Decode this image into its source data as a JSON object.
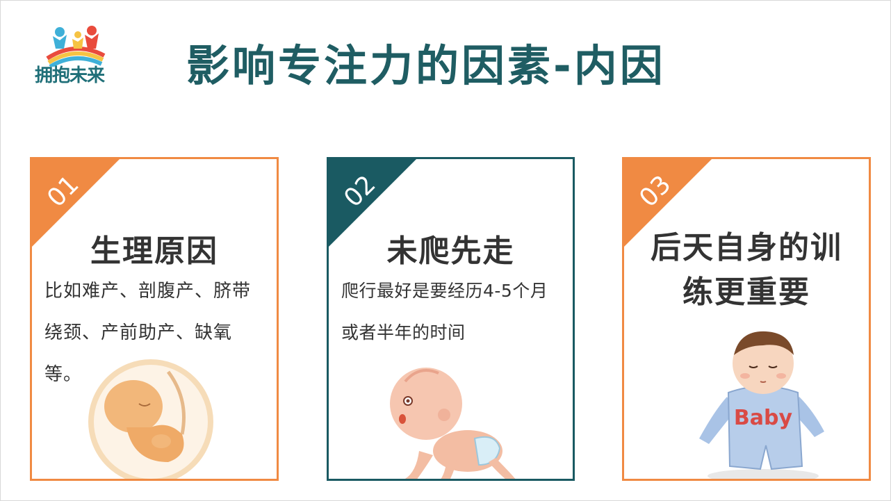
{
  "logo": {
    "text": "拥抱未来"
  },
  "title": "影响专注力的因素-内因",
  "cards": [
    {
      "number": "01",
      "heading": "生理原因",
      "body": "比如难产、剖腹产、脐带绕颈、产前助产、缺氧等。"
    },
    {
      "number": "02",
      "heading": "未爬先走",
      "body": "爬行最好是要经历4-5个月或者半年的时间"
    },
    {
      "number": "03",
      "heading": "后天自身的训练更重要",
      "body": ""
    }
  ],
  "illustration_text": {
    "onesie": "Baby"
  },
  "colors": {
    "accent_orange": "#f08a43",
    "accent_teal": "#1a5a62",
    "title": "#1f5d63"
  }
}
